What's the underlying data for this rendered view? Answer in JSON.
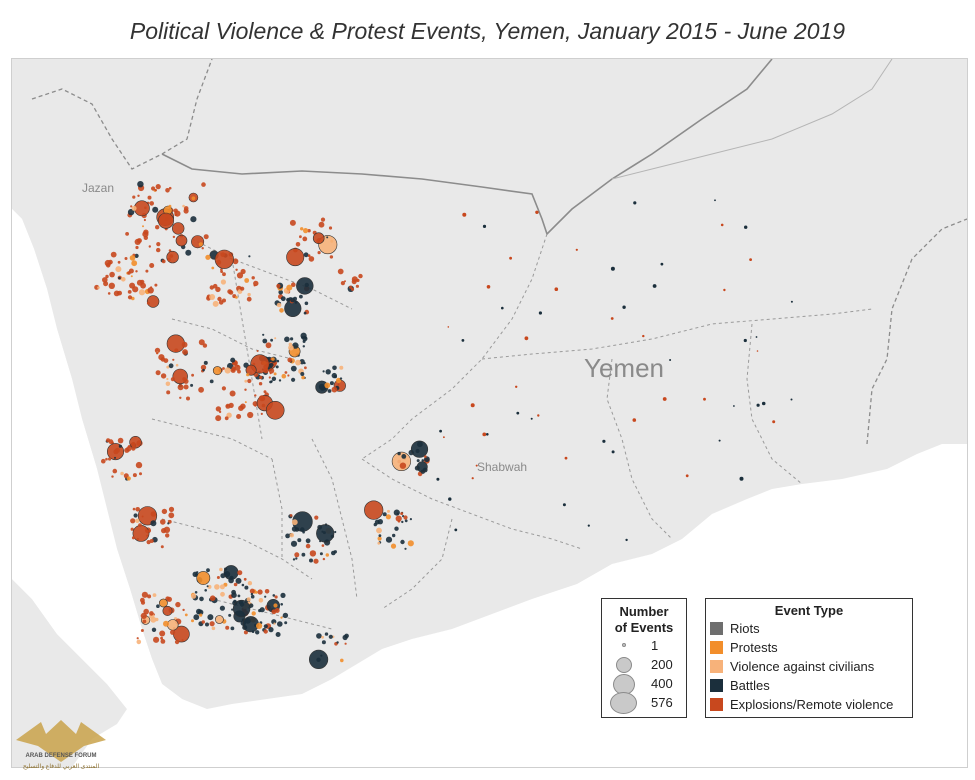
{
  "title": "Political Violence & Protest Events, Yemen, January 2015 - June 2019",
  "map": {
    "country_label": "Yemen",
    "place_labels": [
      "Jazan",
      "Shabwah"
    ]
  },
  "size_legend": {
    "title_line1": "Number",
    "title_line2": "of Events",
    "items": [
      "1",
      "200",
      "400",
      "576"
    ]
  },
  "type_legend": {
    "title": "Event Type",
    "items": [
      {
        "label": "Riots",
        "color": "#6e6e6e"
      },
      {
        "label": "Protests",
        "color": "#f28e2b"
      },
      {
        "label": "Violence against civilians",
        "color": "#f7b27a"
      },
      {
        "label": "Battles",
        "color": "#1b2f3c"
      },
      {
        "label": "Explosions/Remote violence",
        "color": "#c8481e"
      }
    ]
  },
  "colors": {
    "land": "#e9e9e9",
    "sea": "#ffffff",
    "border": "#8c8c8c",
    "explosions": "#c8481e",
    "battles": "#1b2f3c",
    "protests": "#f28e2b"
  },
  "watermark": {
    "logo_text": "ARAB DEFENSE FORUM",
    "sub_text": "المنتدى العربي للدفاع والتسليح"
  }
}
